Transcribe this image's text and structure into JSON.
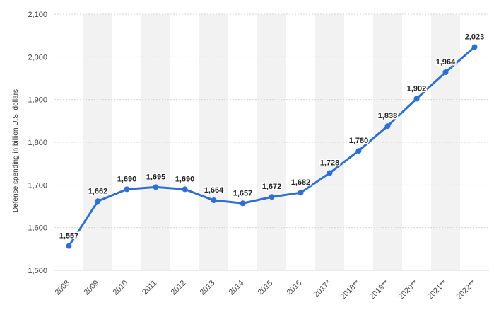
{
  "chart_data": {
    "type": "line",
    "ylabel": "Defense spending in billion U.S. dollars",
    "xlabel": "",
    "title": "",
    "ylim": [
      1500,
      2100
    ],
    "yticks": [
      1500,
      1600,
      1700,
      1800,
      1900,
      2000,
      2100
    ],
    "ytick_labels": [
      "1,500",
      "1,600",
      "1,700",
      "1,800",
      "1,900",
      "2,000",
      "2,100"
    ],
    "grid": "horizontal",
    "alternating_column_bands": true,
    "categories": [
      "2008",
      "2009",
      "2010",
      "2011",
      "2012",
      "2013",
      "2014",
      "2015",
      "2016",
      "2017*",
      "2018**",
      "2019**",
      "2020**",
      "2021**",
      "2022**"
    ],
    "series": [
      {
        "values": [
          1557,
          1662,
          1690,
          1695,
          1690,
          1664,
          1657,
          1672,
          1682,
          1728,
          1780,
          1838,
          1902,
          1964,
          2023
        ],
        "labels": [
          "1,557",
          "1,662",
          "1,690",
          "1,695",
          "1,690",
          "1,664",
          "1,657",
          "1,672",
          "1,682",
          "1,728",
          "1,780",
          "1,838",
          "1,902",
          "1,964",
          "2,023"
        ],
        "color": "#2f6fd1"
      }
    ]
  }
}
